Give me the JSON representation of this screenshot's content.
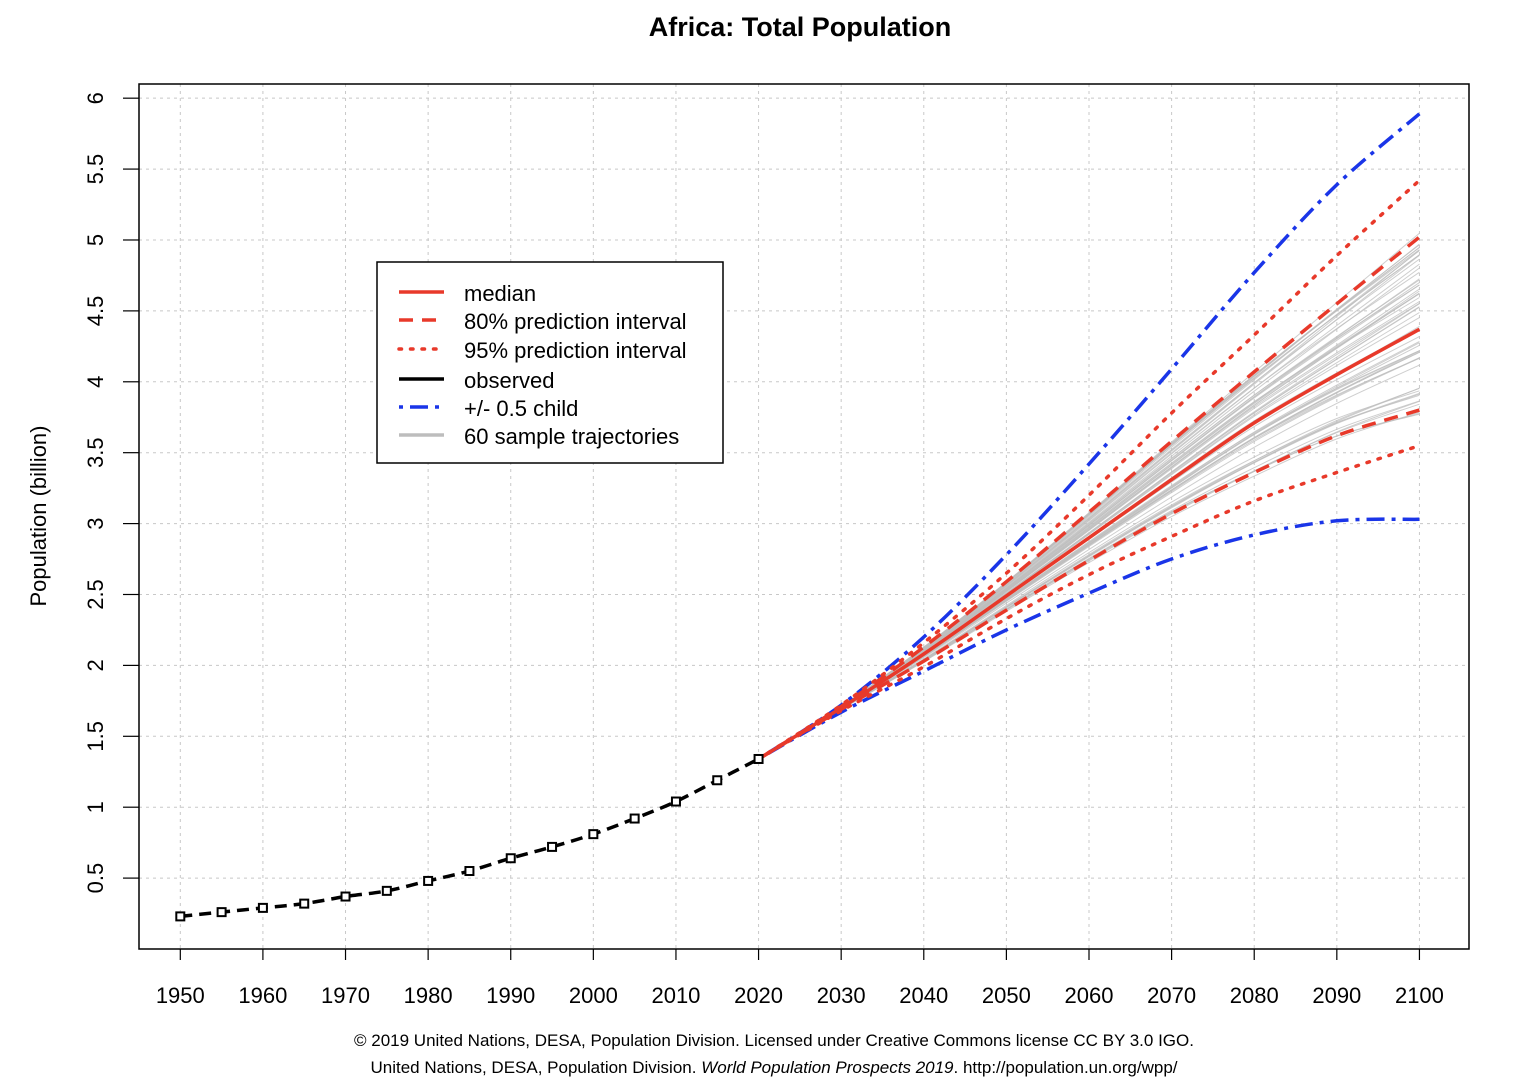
{
  "chart_data": {
    "type": "line",
    "title": "Africa: Total Population",
    "xlabel": "",
    "ylabel": "Population (billion)",
    "xlim": [
      1945,
      2106
    ],
    "ylim": [
      0,
      6.1
    ],
    "x_ticks": [
      1950,
      1960,
      1970,
      1980,
      1990,
      2000,
      2010,
      2020,
      2030,
      2040,
      2050,
      2060,
      2070,
      2080,
      2090,
      2100
    ],
    "y_ticks": [
      0.5,
      1,
      1.5,
      2,
      2.5,
      3,
      3.5,
      4,
      4.5,
      5,
      5.5,
      6
    ],
    "y_tick_labels": [
      "0.5",
      "1",
      "1.5",
      "2",
      "2.5",
      "3",
      "3.5",
      "4",
      "4.5",
      "5",
      "5.5",
      "6"
    ],
    "grid": true,
    "legend_position": "upper-left",
    "series": [
      {
        "name": "observed",
        "color": "#000000",
        "style": "dashed-markers",
        "x": [
          1950,
          1955,
          1960,
          1965,
          1970,
          1975,
          1980,
          1985,
          1990,
          1995,
          2000,
          2005,
          2010,
          2015,
          2020
        ],
        "y": [
          0.23,
          0.26,
          0.29,
          0.32,
          0.37,
          0.41,
          0.48,
          0.55,
          0.64,
          0.72,
          0.81,
          0.92,
          1.04,
          1.19,
          1.34
        ]
      },
      {
        "name": "median",
        "color": "#e8392a",
        "style": "solid",
        "x": [
          2020,
          2030,
          2040,
          2050,
          2060,
          2070,
          2080,
          2090,
          2100
        ],
        "y": [
          1.34,
          1.7,
          2.08,
          2.49,
          2.9,
          3.31,
          3.71,
          4.05,
          4.37
        ]
      },
      {
        "name": "80% prediction interval (upper)",
        "color": "#e8392a",
        "style": "dashed",
        "x": [
          2020,
          2030,
          2040,
          2050,
          2060,
          2070,
          2080,
          2090,
          2100
        ],
        "y": [
          1.34,
          1.71,
          2.13,
          2.59,
          3.08,
          3.58,
          4.07,
          4.55,
          5.02
        ]
      },
      {
        "name": "80% prediction interval (lower)",
        "color": "#e8392a",
        "style": "dashed",
        "x": [
          2020,
          2030,
          2040,
          2050,
          2060,
          2070,
          2080,
          2090,
          2100
        ],
        "y": [
          1.34,
          1.69,
          2.03,
          2.39,
          2.74,
          3.07,
          3.36,
          3.62,
          3.8
        ]
      },
      {
        "name": "95% prediction interval (upper)",
        "color": "#e8392a",
        "style": "dotted",
        "x": [
          2020,
          2030,
          2040,
          2050,
          2060,
          2070,
          2080,
          2090,
          2100
        ],
        "y": [
          1.34,
          1.72,
          2.16,
          2.65,
          3.2,
          3.78,
          4.33,
          4.89,
          5.42
        ]
      },
      {
        "name": "95% prediction interval (lower)",
        "color": "#e8392a",
        "style": "dotted",
        "x": [
          2020,
          2030,
          2040,
          2050,
          2060,
          2070,
          2080,
          2090,
          2100
        ],
        "y": [
          1.34,
          1.68,
          1.99,
          2.33,
          2.64,
          2.91,
          3.16,
          3.36,
          3.55
        ]
      },
      {
        "name": "+/- 0.5 child (upper)",
        "color": "#1a35e8",
        "style": "dashdot",
        "x": [
          2020,
          2030,
          2040,
          2050,
          2060,
          2070,
          2080,
          2090,
          2100
        ],
        "y": [
          1.34,
          1.72,
          2.2,
          2.78,
          3.42,
          4.09,
          4.77,
          5.39,
          5.89
        ]
      },
      {
        "name": "+/- 0.5 child (lower)",
        "color": "#1a35e8",
        "style": "dashdot",
        "x": [
          2020,
          2030,
          2040,
          2050,
          2060,
          2070,
          2080,
          2090,
          2100
        ],
        "y": [
          1.34,
          1.67,
          1.96,
          2.25,
          2.51,
          2.75,
          2.92,
          3.02,
          3.03
        ]
      }
    ],
    "trajectories": {
      "name": "60 sample trajectories",
      "color": "#bdbdbd",
      "count": 60,
      "x": [
        2020,
        2030,
        2040,
        2050,
        2060,
        2070,
        2080,
        2090,
        2100
      ],
      "y_2100_range": [
        3.62,
        4.78
      ]
    },
    "legend": [
      {
        "label": "median",
        "style": "solid",
        "color": "#e8392a"
      },
      {
        "label": "80% prediction interval",
        "style": "dashed",
        "color": "#e8392a"
      },
      {
        "label": "95% prediction interval",
        "style": "dotted",
        "color": "#e8392a"
      },
      {
        "label": "observed",
        "style": "solid",
        "color": "#000000"
      },
      {
        "label": "+/- 0.5 child",
        "style": "dashdot",
        "color": "#1a35e8"
      },
      {
        "label": "60 sample trajectories",
        "style": "solid",
        "color": "#bdbdbd"
      }
    ]
  },
  "credits": {
    "line1": "© 2019 United Nations, DESA, Population Division. Licensed under Creative Commons license CC BY 3.0 IGO.",
    "line2_a": "United Nations, DESA, Population Division. ",
    "line2_b": "World Population Prospects 2019",
    "line2_c": ". http://population.un.org/wpp/"
  }
}
